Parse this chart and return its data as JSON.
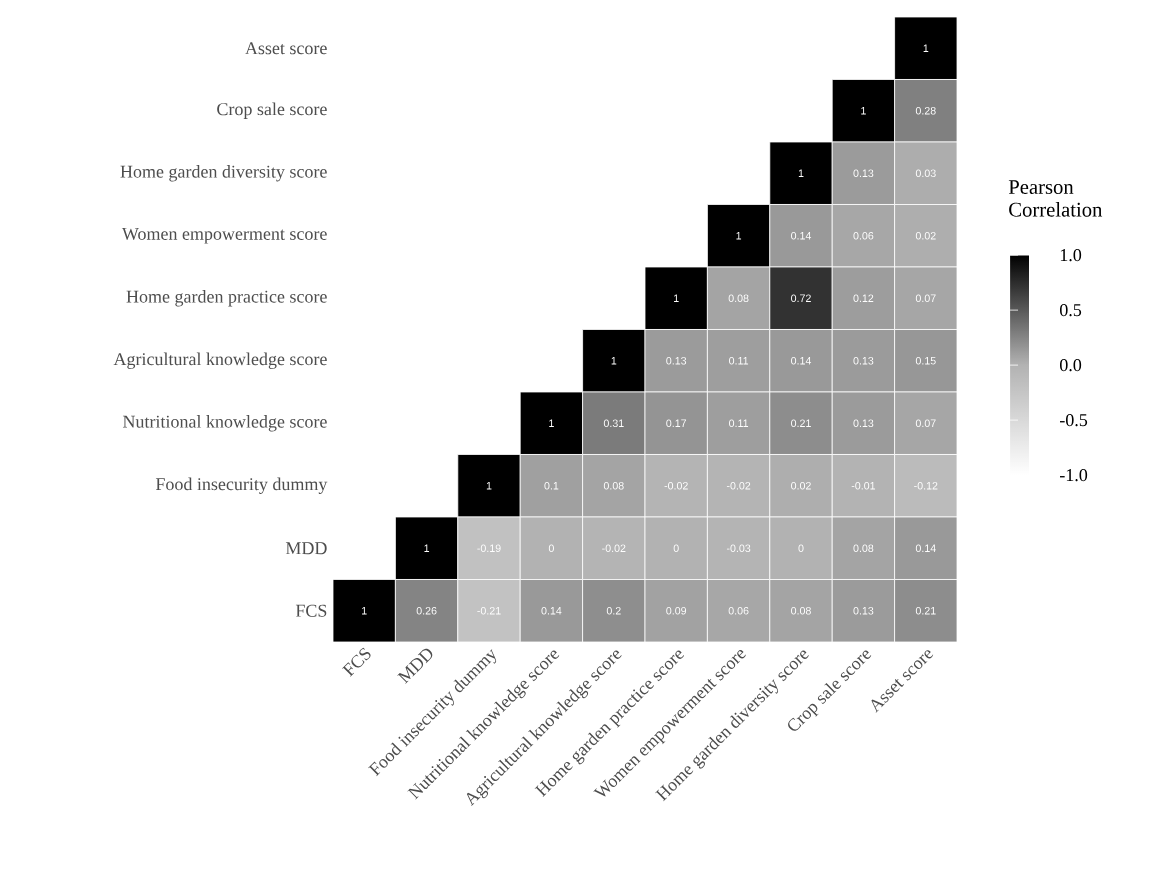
{
  "chart_data": {
    "type": "heatmap",
    "clabel": "Pearson Correlation",
    "categories": [
      "FCS",
      "MDD",
      "Food insecurity dummy",
      "Nutritional knowledge score",
      "Agricultural knowledge score",
      "Home garden practice score",
      "Women empowerment score",
      "Home garden diversity score",
      "Crop sale score",
      "Asset score"
    ],
    "y_categories": [
      "Asset score",
      "Crop sale score",
      "Home garden diversity score",
      "Women empowerment score",
      "Home garden practice score",
      "Agricultural knowledge score",
      "Nutritional knowledge score",
      "Food insecurity dummy",
      "MDD",
      "FCS"
    ],
    "cells": [
      [
        null,
        null,
        null,
        null,
        null,
        null,
        null,
        null,
        null,
        1
      ],
      [
        null,
        null,
        null,
        null,
        null,
        null,
        null,
        null,
        1,
        0.28
      ],
      [
        null,
        null,
        null,
        null,
        null,
        null,
        null,
        1,
        0.13,
        0.03
      ],
      [
        null,
        null,
        null,
        null,
        null,
        null,
        1,
        0.14,
        0.06,
        0.02
      ],
      [
        null,
        null,
        null,
        null,
        null,
        1,
        0.08,
        0.72,
        0.12,
        0.07
      ],
      [
        null,
        null,
        null,
        null,
        1,
        0.13,
        0.11,
        0.14,
        0.13,
        0.15
      ],
      [
        null,
        null,
        null,
        1,
        0.31,
        0.17,
        0.11,
        0.21,
        0.13,
        0.07
      ],
      [
        null,
        null,
        1,
        0.1,
        0.08,
        -0.02,
        -0.02,
        0.02,
        -0.01,
        -0.12
      ],
      [
        null,
        1,
        -0.19,
        0,
        -0.02,
        0,
        -0.03,
        0,
        0.08,
        0.14
      ],
      [
        1,
        0.26,
        -0.21,
        0.14,
        0.2,
        0.09,
        0.06,
        0.08,
        0.13,
        0.21
      ]
    ],
    "data_labels": true,
    "clim": [
      -1,
      1
    ],
    "cticks": [
      {
        "value": -1,
        "label": "-1.0"
      },
      {
        "value": -0.5,
        "label": "-0.5"
      },
      {
        "value": 0,
        "label": "0.0"
      },
      {
        "value": 0.5,
        "label": "0.5"
      },
      {
        "value": 1,
        "label": "1.0"
      }
    ]
  }
}
